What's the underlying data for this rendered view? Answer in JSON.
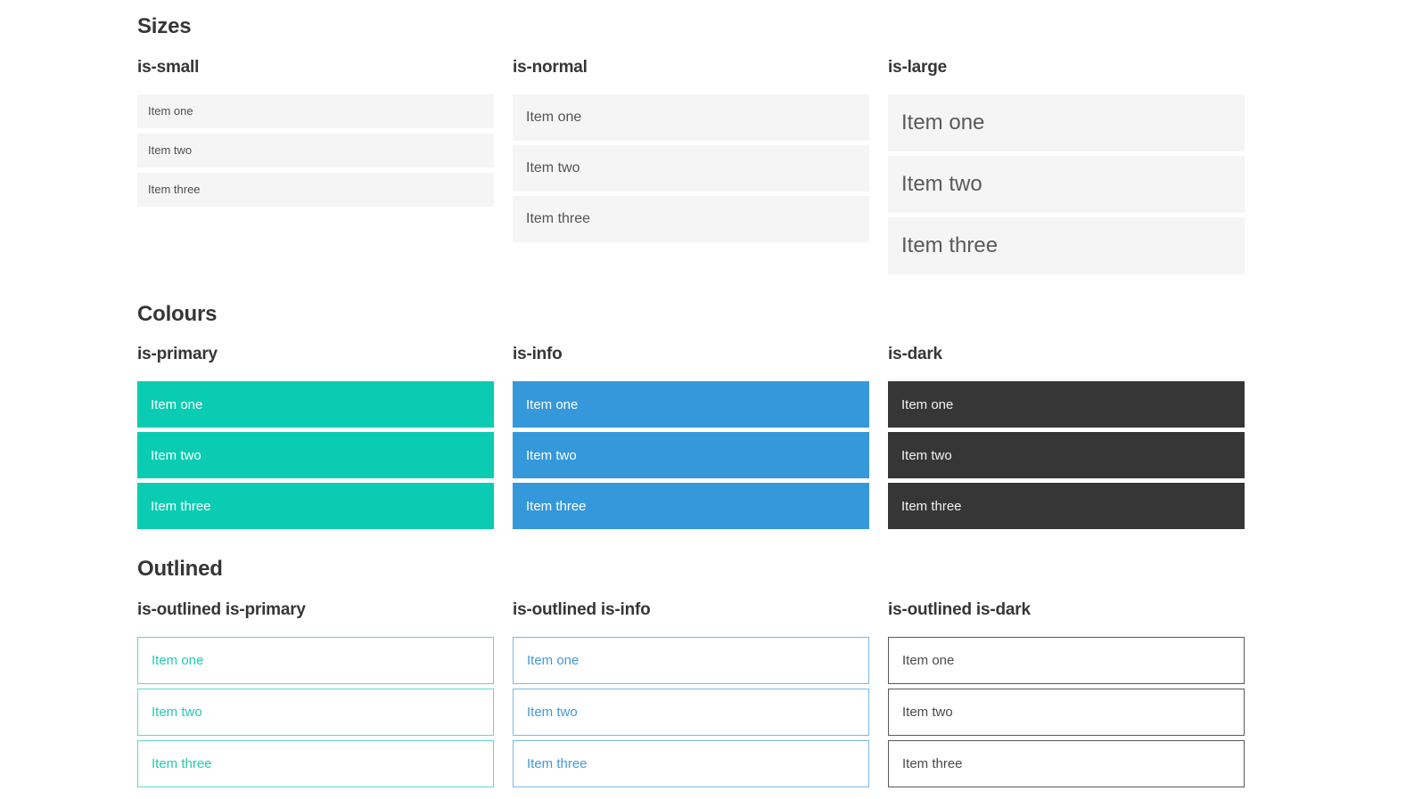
{
  "sections": [
    {
      "title": "Sizes",
      "groups": [
        {
          "heading": "is-small",
          "items": [
            "Item one",
            "Item two",
            "Item three"
          ]
        },
        {
          "heading": "is-normal",
          "items": [
            "Item one",
            "Item two",
            "Item three"
          ]
        },
        {
          "heading": "is-large",
          "items": [
            "Item one",
            "Item two",
            "Item three"
          ]
        }
      ]
    },
    {
      "title": "Colours",
      "groups": [
        {
          "heading": "is-primary",
          "items": [
            "Item one",
            "Item two",
            "Item three"
          ]
        },
        {
          "heading": "is-info",
          "items": [
            "Item one",
            "Item two",
            "Item three"
          ]
        },
        {
          "heading": "is-dark",
          "items": [
            "Item one",
            "Item two",
            "Item three"
          ]
        }
      ]
    },
    {
      "title": "Outlined",
      "groups": [
        {
          "heading": "is-outlined is-primary",
          "items": [
            "Item one",
            "Item two",
            "Item three"
          ]
        },
        {
          "heading": "is-outlined is-info",
          "items": [
            "Item one",
            "Item two",
            "Item three"
          ]
        },
        {
          "heading": "is-outlined is-dark",
          "items": [
            "Item one",
            "Item two",
            "Item three"
          ]
        }
      ]
    }
  ],
  "colors": {
    "primary": "#0accb2",
    "primary_outline_border": "#5cdac7",
    "primary_outline_text": "#25c9b0",
    "info": "#3498db",
    "info_outline_border": "#79b8e8",
    "info_outline_text": "#4299db",
    "dark": "#363636",
    "dark_outline_border": "#575757",
    "dark_outline_text": "#4a4a4a",
    "neutral_item_bg": "#f5f5f5",
    "neutral_item_text": "#545454",
    "heading_text": "#363636"
  }
}
